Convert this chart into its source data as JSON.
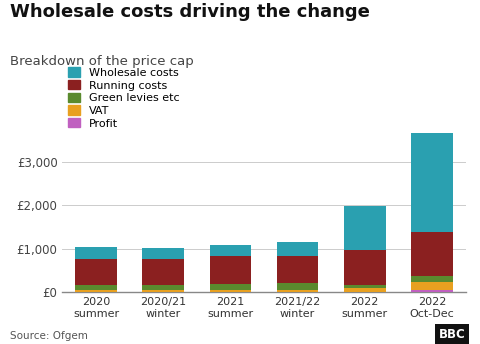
{
  "categories": [
    "2020\nsummer",
    "2020/21\nwinter",
    "2021\nsummer",
    "2021/22\nwinter",
    "2022\nsummer",
    "2022\nOct-Dec"
  ],
  "wholesale": [
    270,
    235,
    265,
    310,
    1010,
    2290
  ],
  "running": [
    600,
    610,
    630,
    640,
    790,
    1000
  ],
  "green_levies": [
    125,
    115,
    145,
    145,
    85,
    145
  ],
  "vat": [
    50,
    48,
    52,
    55,
    90,
    185
  ],
  "profit": [
    5,
    5,
    5,
    5,
    5,
    50
  ],
  "colors": {
    "wholesale": "#2aa0b0",
    "running": "#8b2020",
    "green_levies": "#5a8a2e",
    "vat": "#e8a020",
    "profit": "#c060c0"
  },
  "title": "Wholesale costs driving the change",
  "subtitle": "Breakdown of the price cap",
  "yticks": [
    0,
    1000,
    2000,
    3000
  ],
  "ylabels": [
    "£0",
    "£1,000",
    "£2,000",
    "£3,000"
  ],
  "ylim": [
    0,
    3800
  ],
  "source": "Source: Ofgem",
  "legend_labels": [
    "Wholesale costs",
    "Running costs",
    "Green levies etc",
    "VAT",
    "Profit"
  ],
  "bg_color": "#ffffff",
  "title_fontsize": 13,
  "subtitle_fontsize": 9.5
}
